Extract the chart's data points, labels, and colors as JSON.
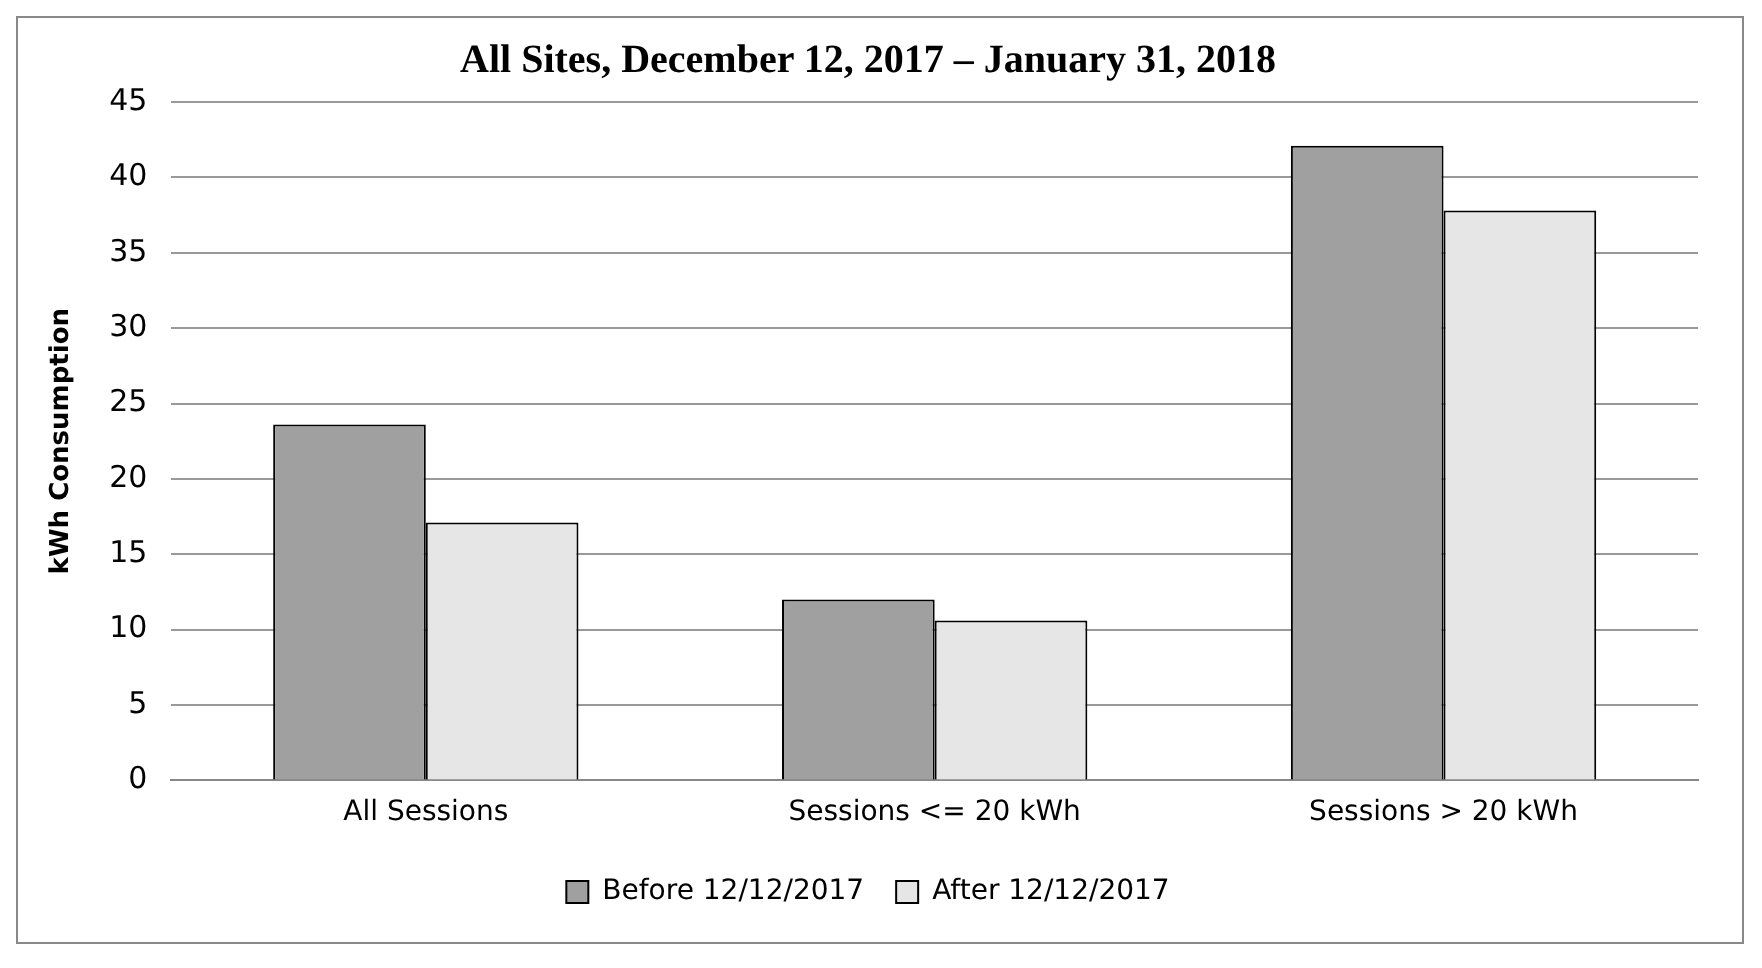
{
  "chart_data": {
    "type": "bar",
    "title": "All Sites, December 12, 2017 – January 31, 2018",
    "ylabel": "kWh Consumption",
    "categories": [
      "All Sessions",
      "Sessions <= 20 kWh",
      "Sessions > 20 kWh"
    ],
    "series": [
      {
        "name": "Before 12/12/2017",
        "color": "#a0a0a0",
        "values": [
          23.6,
          12.0,
          42.1
        ]
      },
      {
        "name": "After 12/12/2017",
        "color": "#e6e6e6",
        "values": [
          17.1,
          10.6,
          37.8
        ]
      }
    ],
    "ylim": [
      0,
      45
    ],
    "yticks": [
      0,
      5,
      10,
      15,
      20,
      25,
      30,
      35,
      40,
      45
    ],
    "grid": "y",
    "legend": "bottom"
  }
}
